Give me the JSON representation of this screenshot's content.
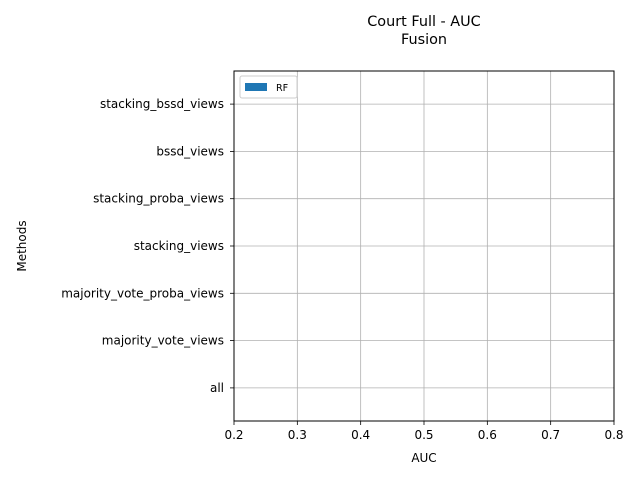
{
  "chart_data": {
    "type": "bar",
    "orientation": "horizontal",
    "title": "Court Full - AUC",
    "subtitle": "Fusion",
    "xlabel": "AUC",
    "ylabel": "Methods",
    "xlim": [
      0.2,
      0.8
    ],
    "xticks": [
      "0.2",
      "0.3",
      "0.4",
      "0.5",
      "0.6",
      "0.7",
      "0.8"
    ],
    "categories": [
      "all",
      "majority_vote_views",
      "majority_vote_proba_views",
      "stacking_views",
      "stacking_proba_views",
      "bssd_views",
      "stacking_bssd_views"
    ],
    "series": [
      {
        "name": "RF",
        "color": "#1f77b4",
        "values": [
          null,
          null,
          null,
          null,
          null,
          null,
          null
        ]
      }
    ],
    "grid": true,
    "legend_position": "upper-left"
  }
}
